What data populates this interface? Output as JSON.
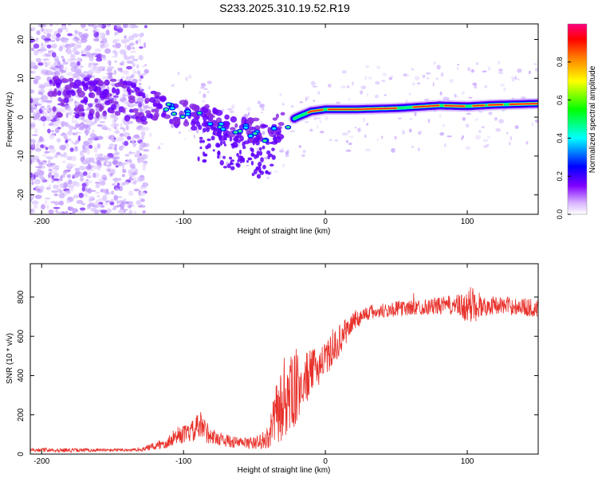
{
  "title": "S233.2025.310.19.52.R19",
  "chart_data": [
    {
      "type": "heatmap",
      "name": "spectrogram",
      "xlabel": "Height of straight line (km)",
      "ylabel": "Frequency (Hz)",
      "xlim": [
        -208,
        150
      ],
      "ylim": [
        -25,
        24
      ],
      "xticks": [
        -200,
        -100,
        0,
        100
      ],
      "yticks": [
        -20,
        -10,
        0,
        10,
        20
      ],
      "colorbar": {
        "label": "Normalized spectral amplitude",
        "range": [
          0,
          1
        ],
        "ticks": [
          0.0,
          0.2,
          0.4,
          0.6,
          0.8
        ],
        "tick_labels": [
          "0.0",
          "0.2",
          "0.4",
          "0.6",
          "0.8"
        ],
        "colors": [
          "#ffffff",
          "#8000ff",
          "#0000ff",
          "#00ffff",
          "#00ff00",
          "#ffff00",
          "#ff8000",
          "#ff0000",
          "#ff0080"
        ]
      },
      "ridge": {
        "description_points_x": [
          -208,
          -180,
          -150,
          -125,
          -110,
          -95,
          -80,
          -65,
          -50,
          -40,
          -30,
          -20,
          -10,
          0,
          20,
          50,
          80,
          100,
          120,
          150
        ],
        "frequency_hz": [
          5.5,
          5,
          4.5,
          3.5,
          2,
          0.5,
          -1,
          -3,
          -4,
          -5,
          -2,
          0,
          1.5,
          2,
          2,
          2.3,
          3,
          2.8,
          3.2,
          3.5
        ]
      }
    },
    {
      "type": "line",
      "name": "snr",
      "xlabel": "Height of straight line (km)",
      "ylabel": "SNR (10 * v/v)",
      "xlim": [
        -208,
        150
      ],
      "ylim": [
        0,
        970
      ],
      "xticks": [
        -200,
        -100,
        0,
        100
      ],
      "yticks": [
        0,
        200,
        400,
        600,
        800
      ],
      "color": "#e8302a",
      "envelope": {
        "x": [
          -208,
          -180,
          -150,
          -130,
          -115,
          -105,
          -95,
          -88,
          -80,
          -65,
          -50,
          -40,
          -35,
          -30,
          -25,
          -20,
          -10,
          0,
          10,
          20,
          30,
          50,
          70,
          90,
          100,
          105,
          110,
          120,
          140,
          150
        ],
        "mean": [
          22,
          20,
          20,
          22,
          50,
          90,
          110,
          140,
          90,
          60,
          55,
          80,
          200,
          250,
          300,
          330,
          420,
          480,
          580,
          680,
          720,
          740,
          750,
          760,
          740,
          780,
          750,
          760,
          750,
          740
        ],
        "spread": [
          10,
          10,
          8,
          8,
          30,
          40,
          50,
          80,
          40,
          30,
          30,
          60,
          150,
          200,
          200,
          180,
          110,
          90,
          80,
          50,
          40,
          40,
          40,
          50,
          80,
          120,
          50,
          45,
          45,
          50
        ]
      }
    }
  ]
}
